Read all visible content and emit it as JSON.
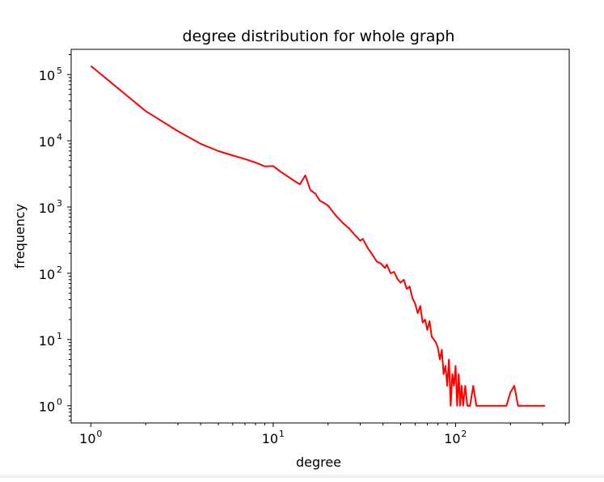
{
  "chart_data": {
    "type": "line",
    "title": "degree distribution for whole graph",
    "xlabel": "degree",
    "ylabel": "frequency",
    "xscale": "log",
    "yscale": "log",
    "xlim": [
      0.78,
      420
    ],
    "ylim": [
      0.55,
      240000
    ],
    "grid": false,
    "x_ticks": [
      {
        "base": "10",
        "exp": "0",
        "value": 1
      },
      {
        "base": "10",
        "exp": "1",
        "value": 10
      },
      {
        "base": "10",
        "exp": "2",
        "value": 100
      }
    ],
    "y_ticks": [
      {
        "base": "10",
        "exp": "0",
        "value": 1
      },
      {
        "base": "10",
        "exp": "1",
        "value": 10
      },
      {
        "base": "10",
        "exp": "2",
        "value": 100
      },
      {
        "base": "10",
        "exp": "3",
        "value": 1000
      },
      {
        "base": "10",
        "exp": "4",
        "value": 10000
      },
      {
        "base": "10",
        "exp": "5",
        "value": 100000
      }
    ],
    "series": [
      {
        "color": "#ff0000",
        "points": [
          [
            1,
            135000
          ],
          [
            2,
            28000
          ],
          [
            3,
            14000
          ],
          [
            4,
            9000
          ],
          [
            5,
            7000
          ],
          [
            6,
            6000
          ],
          [
            7,
            5300
          ],
          [
            8,
            4700
          ],
          [
            9,
            4100
          ],
          [
            10,
            4150
          ],
          [
            11,
            3400
          ],
          [
            12,
            2900
          ],
          [
            13,
            2500
          ],
          [
            14,
            2200
          ],
          [
            15,
            3000
          ],
          [
            16,
            1800
          ],
          [
            17,
            1600
          ],
          [
            18,
            1250
          ],
          [
            19,
            1150
          ],
          [
            20,
            1050
          ],
          [
            22,
            750
          ],
          [
            24,
            580
          ],
          [
            26,
            480
          ],
          [
            28,
            380
          ],
          [
            30,
            310
          ],
          [
            31,
            330
          ],
          [
            33,
            240
          ],
          [
            35,
            190
          ],
          [
            37,
            150
          ],
          [
            39,
            140
          ],
          [
            41,
            120
          ],
          [
            42,
            135
          ],
          [
            44,
            100
          ],
          [
            46,
            105
          ],
          [
            48,
            82
          ],
          [
            50,
            72
          ],
          [
            52,
            80
          ],
          [
            54,
            58
          ],
          [
            56,
            63
          ],
          [
            58,
            42
          ],
          [
            60,
            35
          ],
          [
            62,
            25
          ],
          [
            64,
            32
          ],
          [
            66,
            18
          ],
          [
            68,
            20
          ],
          [
            70,
            14
          ],
          [
            72,
            19
          ],
          [
            74,
            11
          ],
          [
            76,
            10
          ],
          [
            78,
            9
          ],
          [
            80,
            7.5
          ],
          [
            82,
            5
          ],
          [
            84,
            7
          ],
          [
            86,
            3
          ],
          [
            88,
            4
          ],
          [
            90,
            2
          ],
          [
            92,
            5
          ],
          [
            94,
            1
          ],
          [
            96,
            3
          ],
          [
            98,
            2
          ],
          [
            100,
            4
          ],
          [
            102,
            1
          ],
          [
            104,
            3
          ],
          [
            106,
            1
          ],
          [
            108,
            2
          ],
          [
            110,
            1
          ],
          [
            113,
            2
          ],
          [
            116,
            1
          ],
          [
            120,
            1
          ],
          [
            125,
            2
          ],
          [
            130,
            1
          ],
          [
            135,
            1
          ],
          [
            140,
            1
          ],
          [
            145,
            1
          ],
          [
            150,
            1
          ],
          [
            155,
            1
          ],
          [
            160,
            1
          ],
          [
            165,
            1
          ],
          [
            170,
            1
          ],
          [
            180,
            1
          ],
          [
            190,
            1
          ],
          [
            200,
            1.6
          ],
          [
            210,
            2
          ],
          [
            220,
            1
          ],
          [
            240,
            1
          ],
          [
            260,
            1
          ],
          [
            280,
            1
          ],
          [
            310,
            1
          ]
        ]
      }
    ]
  }
}
